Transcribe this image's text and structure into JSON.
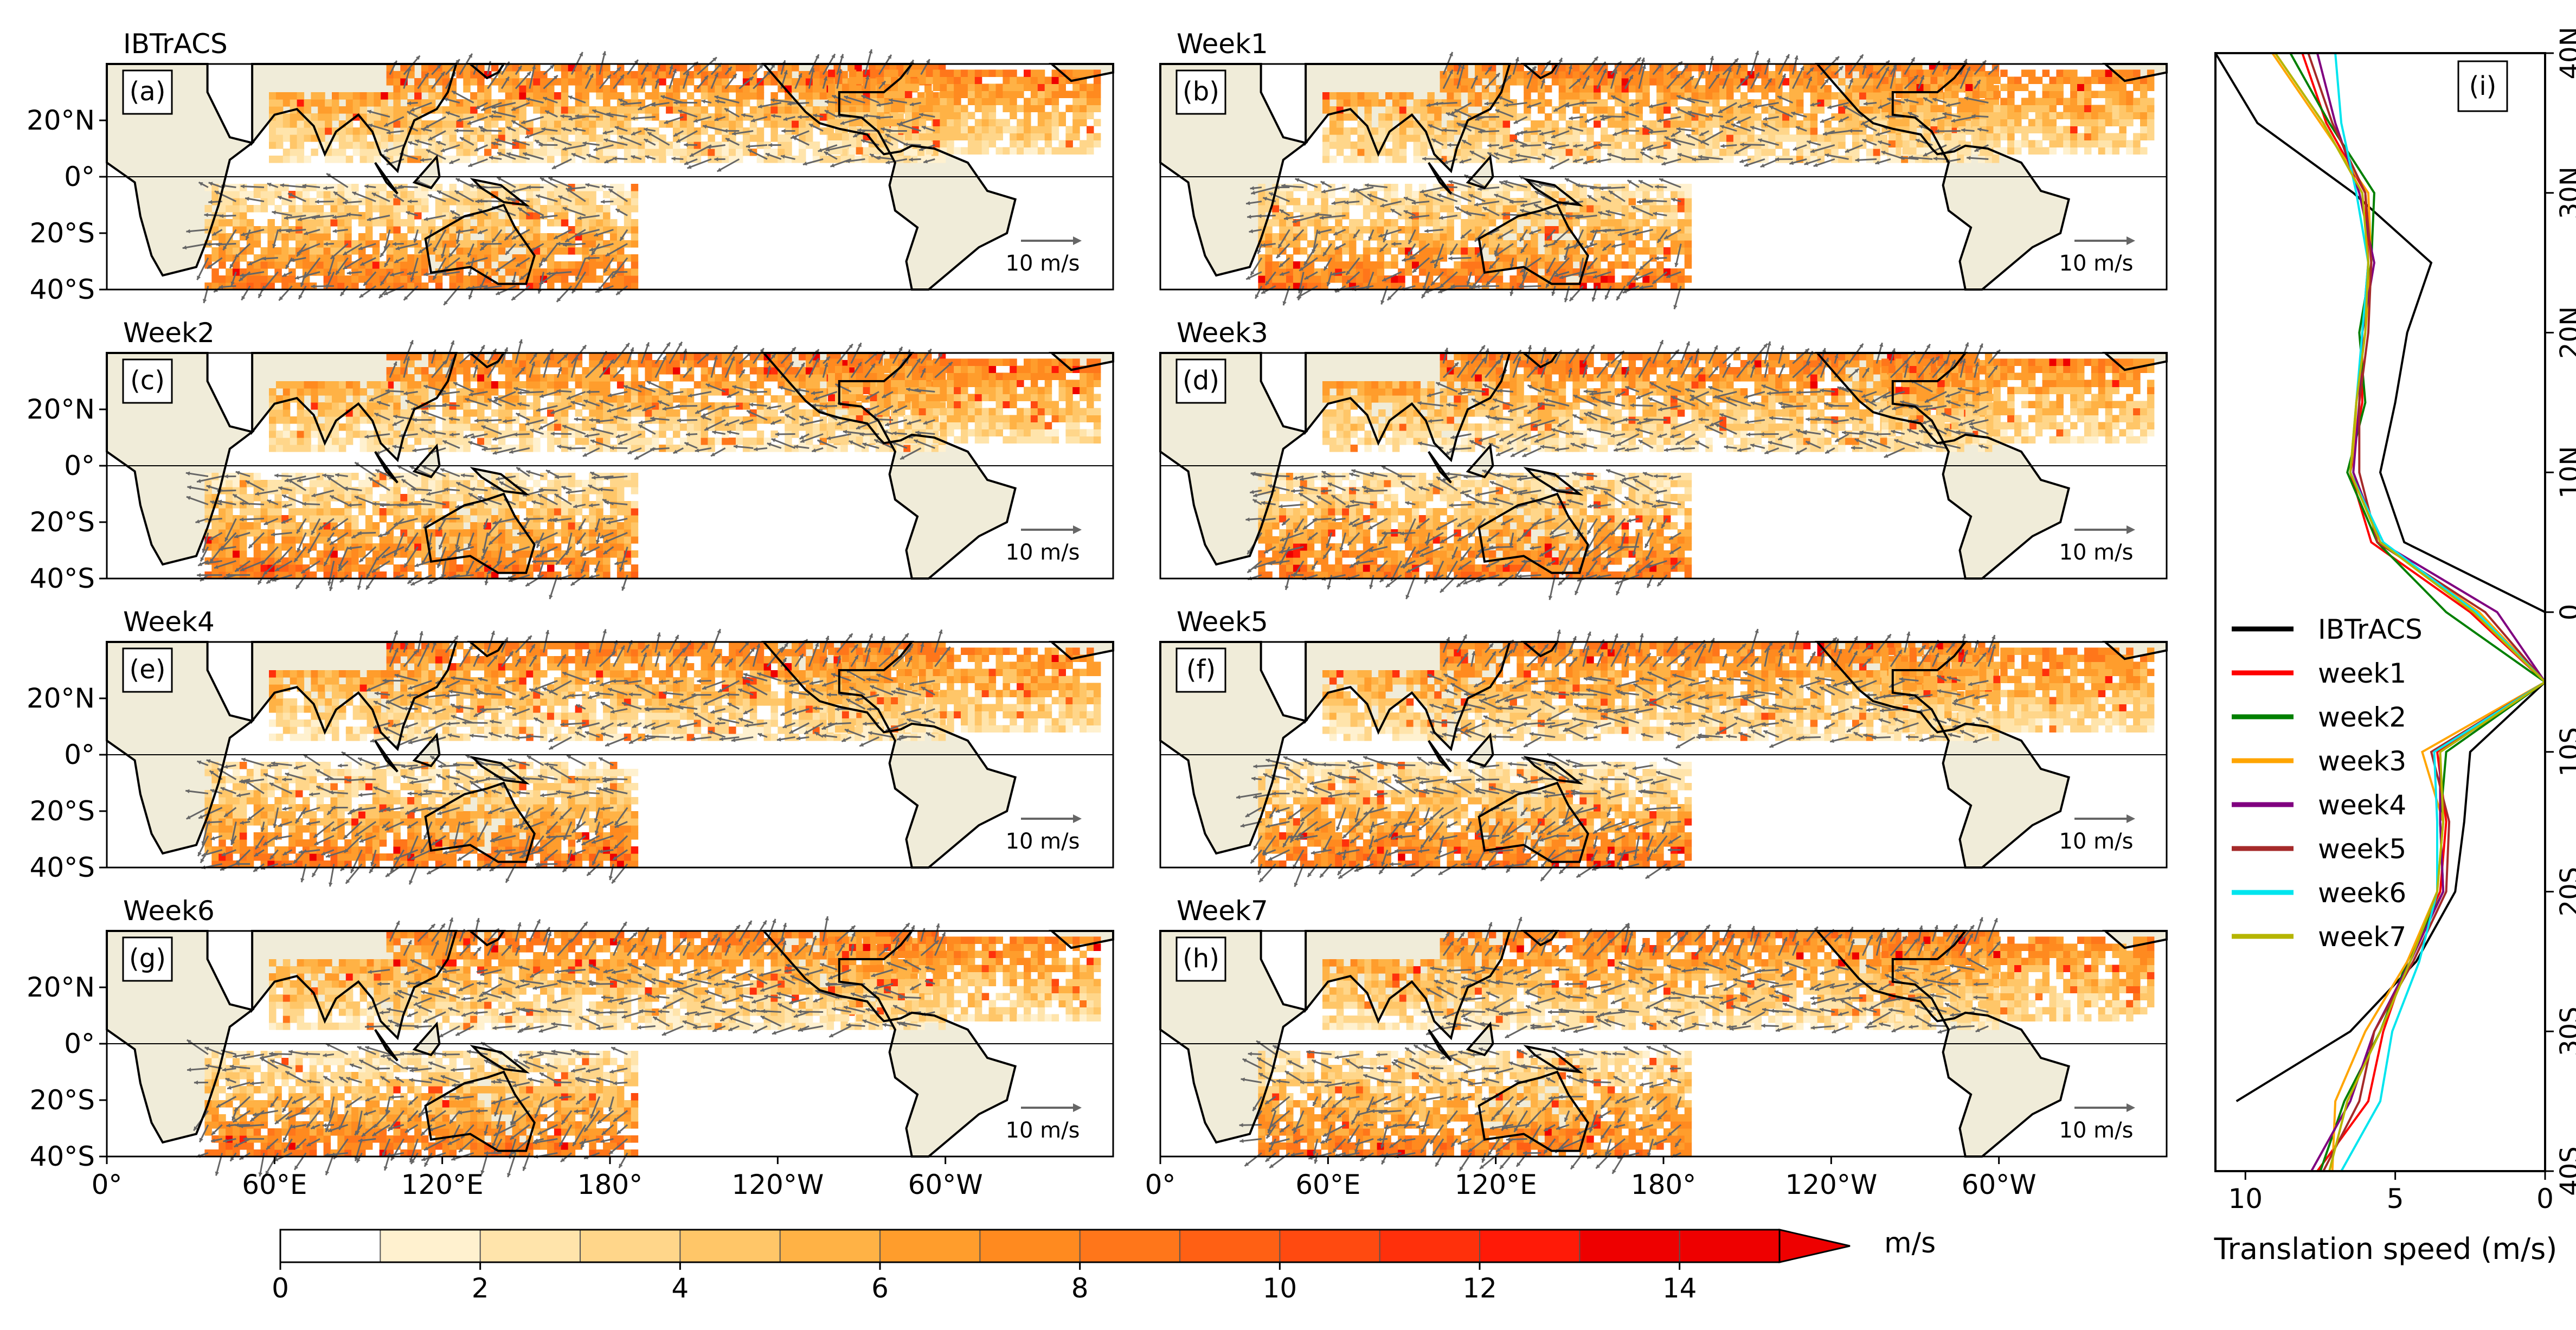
{
  "figure": {
    "panels": [
      {
        "letter": "(a)",
        "title": "IBTrACS",
        "arrow_label": "10 m/s"
      },
      {
        "letter": "(b)",
        "title": "Week1",
        "arrow_label": "10 m/s"
      },
      {
        "letter": "(c)",
        "title": "Week2",
        "arrow_label": "10 m/s"
      },
      {
        "letter": "(d)",
        "title": "Week3",
        "arrow_label": "10 m/s"
      },
      {
        "letter": "(e)",
        "title": "Week4",
        "arrow_label": "10 m/s"
      },
      {
        "letter": "(f)",
        "title": "Week5",
        "arrow_label": "10 m/s"
      },
      {
        "letter": "(g)",
        "title": "Week6",
        "arrow_label": "10 m/s"
      },
      {
        "letter": "(h)",
        "title": "Week7",
        "arrow_label": "10 m/s"
      }
    ],
    "map_lat_ticks": [
      "20°N",
      "0°",
      "20°S",
      "40°S"
    ],
    "map_lon_ticks": [
      "0°",
      "60°E",
      "120°E",
      "180°",
      "120°W",
      "60°W"
    ],
    "colorbar": {
      "ticks": [
        "0",
        "2",
        "4",
        "6",
        "8",
        "10",
        "12",
        "14"
      ],
      "unit": "m/s",
      "colors": [
        "#ffffff",
        "#fff1cf",
        "#ffe4ab",
        "#ffd68a",
        "#ffc668",
        "#ffb245",
        "#ff9d2c",
        "#ff8a1f",
        "#ff761a",
        "#ff6014",
        "#ff4a10",
        "#ff300b",
        "#ff1a07",
        "#ee0000"
      ]
    },
    "land_color": "#f0ecd9",
    "arrow_color": "#666666",
    "colors": {
      "ibtracs": "#000000",
      "week1": "#ff0000",
      "week2": "#008000",
      "week3": "#ffa500",
      "week4": "#800080",
      "week5": "#a52a2a",
      "week6": "#00e5ee",
      "week7": "#b5b500"
    }
  },
  "chart_data": [
    {
      "type": "heatmap",
      "description_role": "map panels (a)-(h): tropical cyclone translation speed (shading, m/s) and direction (arrows), 0-360 lon, 40S-40N",
      "panels": [
        "IBTrACS",
        "Week1",
        "Week2",
        "Week3",
        "Week4",
        "Week5",
        "Week6",
        "Week7"
      ],
      "colorbar_range": [
        0,
        15
      ],
      "colorbar_unit": "m/s",
      "reference_vector": "10 m/s"
    },
    {
      "type": "line",
      "panel": "(i)",
      "xlabel": "Translation speed (m/s)",
      "xlim": [
        11,
        0
      ],
      "x_ticks": [
        "10",
        "5",
        "0"
      ],
      "ylim": [
        -40,
        40
      ],
      "y_tick_labels": [
        "40N",
        "30N",
        "20N",
        "10N",
        "0",
        "10S",
        "20S",
        "30S",
        "40S"
      ],
      "y_tick_values": [
        40,
        30,
        20,
        10,
        0,
        -10,
        -20,
        -30,
        -40
      ],
      "legend_position": "middle-left",
      "series": [
        {
          "name": "IBTrACS",
          "lat": [
            40,
            35,
            30,
            25,
            20,
            15,
            10,
            5,
            0,
            -5,
            -10,
            -15,
            -20,
            -25,
            -30,
            -35
          ],
          "speed": [
            11,
            9.6,
            6.4,
            3.8,
            4.6,
            5,
            5.5,
            4.7,
            0,
            0,
            2.5,
            2.7,
            3,
            4.3,
            6.5,
            10.3
          ]
        },
        {
          "name": "week1",
          "lat": [
            40,
            35,
            30,
            25,
            20,
            15,
            10,
            5,
            0,
            -5,
            -10,
            -15,
            -20,
            -25,
            -30,
            -35,
            -40
          ],
          "speed": [
            8.1,
            7.3,
            6,
            5.9,
            6.1,
            6.1,
            6.5,
            5.8,
            2.5,
            0,
            3.6,
            3.3,
            3.5,
            4.6,
            5.4,
            5.9,
            7.6
          ]
        },
        {
          "name": "week2",
          "lat": [
            40,
            35,
            30,
            25,
            20,
            15,
            10,
            5,
            0,
            -5,
            -10,
            -15,
            -20,
            -25,
            -30,
            -35,
            -40
          ],
          "speed": [
            8.5,
            7.2,
            5.7,
            5.8,
            6.2,
            6,
            6.6,
            5.6,
            3.3,
            0,
            3.3,
            3.5,
            3.4,
            4.6,
            5.5,
            6.7,
            7.5
          ]
        },
        {
          "name": "week3",
          "lat": [
            40,
            35,
            30,
            25,
            20,
            15,
            10,
            5,
            0,
            -5,
            -10,
            -15,
            -20,
            -25,
            -30,
            -35,
            -40
          ],
          "speed": [
            9.1,
            7.5,
            5.9,
            5.8,
            6,
            6.3,
            6.4,
            5.5,
            2.2,
            0,
            4.1,
            3.4,
            3.6,
            4.6,
            6,
            7,
            7.1
          ]
        },
        {
          "name": "week4",
          "lat": [
            40,
            35,
            30,
            25,
            20,
            15,
            10,
            5,
            0,
            -5,
            -10,
            -15,
            -20,
            -25,
            -30,
            -35,
            -40
          ],
          "speed": [
            7.6,
            7,
            6.2,
            5.7,
            6.1,
            6.2,
            6.4,
            5.5,
            1.6,
            0,
            3.5,
            3.5,
            3.4,
            4.5,
            5.7,
            6.5,
            7.8
          ]
        },
        {
          "name": "week5",
          "lat": [
            40,
            35,
            30,
            25,
            20,
            15,
            10,
            5,
            0,
            -5,
            -10,
            -15,
            -20,
            -25,
            -30,
            -35,
            -40
          ],
          "speed": [
            7.9,
            7.1,
            6,
            5.8,
            5.9,
            6.2,
            6.2,
            5.6,
            2,
            0,
            3.8,
            3.2,
            3.3,
            4.4,
            5.7,
            6.2,
            7.4
          ]
        },
        {
          "name": "week6",
          "lat": [
            40,
            35,
            30,
            25,
            20,
            15,
            10,
            5,
            0,
            -5,
            -10,
            -15,
            -20,
            -25,
            -30,
            -35,
            -40
          ],
          "speed": [
            7,
            6.8,
            6.3,
            5.9,
            6.1,
            6.3,
            6.5,
            5.4,
            2.3,
            0,
            3.7,
            3.6,
            3.6,
            4.2,
            5.1,
            5.5,
            6.8
          ]
        },
        {
          "name": "week7",
          "lat": [
            40,
            35,
            30,
            25,
            20,
            15,
            10,
            5,
            0,
            -5,
            -10,
            -15,
            -20,
            -25,
            -30,
            -35,
            -40
          ],
          "speed": [
            9,
            7.4,
            6.1,
            5.9,
            6,
            6.3,
            6.5,
            5.5,
            2.4,
            0,
            3.5,
            3.4,
            3.6,
            4.5,
            5.5,
            6.6,
            7.2
          ]
        }
      ]
    }
  ]
}
